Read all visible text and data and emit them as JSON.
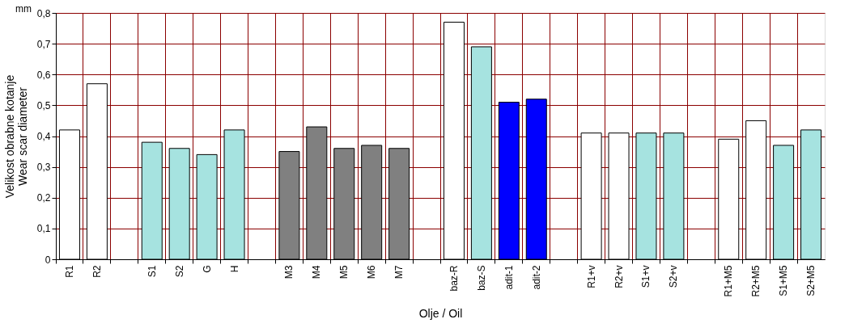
{
  "chart_data": {
    "type": "bar",
    "categories": [
      "R1",
      "R2",
      null,
      "S1",
      "S2",
      "G",
      "H",
      null,
      "M3",
      "M4",
      "M5",
      "M6",
      "M7",
      null,
      "baz-R",
      "baz-S",
      "adit-1",
      "adit-2",
      null,
      "R1+v",
      "R2+v",
      "S1+v",
      "S2+v",
      null,
      "R1+M5",
      "R2+M5",
      "S1+M5",
      "S2+M5"
    ],
    "values": [
      0.42,
      0.57,
      null,
      0.38,
      0.36,
      0.34,
      0.42,
      null,
      0.35,
      0.43,
      0.36,
      0.37,
      0.36,
      null,
      0.77,
      0.69,
      0.51,
      0.52,
      null,
      0.41,
      0.41,
      0.41,
      0.41,
      null,
      0.39,
      0.45,
      0.37,
      0.42
    ],
    "colors": [
      "#ffffff",
      "#ffffff",
      null,
      "#a6e3e0",
      "#a6e3e0",
      "#a6e3e0",
      "#a6e3e0",
      null,
      "#808080",
      "#808080",
      "#808080",
      "#808080",
      "#808080",
      null,
      "#ffffff",
      "#a6e3e0",
      "#0000ff",
      "#0000ff",
      null,
      "#ffffff",
      "#ffffff",
      "#a6e3e0",
      "#a6e3e0",
      null,
      "#ffffff",
      "#ffffff",
      "#a6e3e0",
      "#a6e3e0"
    ],
    "ylim": [
      0,
      0.8
    ],
    "yticks": [
      0,
      {
        "value": 0.1,
        "label": "0,1"
      },
      {
        "value": 0.2,
        "label": "0,2"
      },
      {
        "value": 0.3,
        "label": "0,3"
      },
      {
        "value": 0.4,
        "label": "0,4"
      },
      {
        "value": 0.5,
        "label": "0,5"
      },
      {
        "value": 0.6,
        "label": "0,6"
      },
      {
        "value": 0.7,
        "label": "0,7"
      },
      {
        "value": 0.8,
        "label": "0,8"
      }
    ],
    "xlabel": "Olje / Oil",
    "ylabel": "Velikost obrabne kotanje\nWear scar diameter",
    "annotations": [
      "mm"
    ],
    "grid": true
  }
}
